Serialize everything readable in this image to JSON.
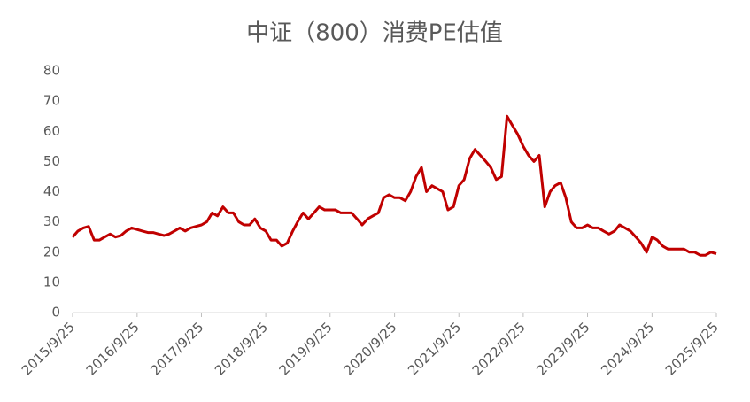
{
  "chart_data": {
    "type": "line",
    "title": "中证（800）消费PE估值",
    "x": [
      "2015/9/25",
      "2015/10/25",
      "2015/11/25",
      "2015/12/25",
      "2016/1/25",
      "2016/2/25",
      "2016/3/25",
      "2016/4/25",
      "2016/5/25",
      "2016/6/25",
      "2016/7/25",
      "2016/8/25",
      "2016/9/25",
      "2016/10/25",
      "2016/11/25",
      "2016/12/25",
      "2017/1/25",
      "2017/2/25",
      "2017/3/25",
      "2017/4/25",
      "2017/5/25",
      "2017/6/25",
      "2017/7/25",
      "2017/8/25",
      "2017/9/25",
      "2017/10/25",
      "2017/11/25",
      "2017/12/25",
      "2018/1/25",
      "2018/2/25",
      "2018/3/25",
      "2018/4/25",
      "2018/5/25",
      "2018/6/25",
      "2018/7/25",
      "2018/8/25",
      "2018/9/25",
      "2018/10/25",
      "2018/11/25",
      "2018/12/25",
      "2019/1/25",
      "2019/2/25",
      "2019/3/25",
      "2019/4/25",
      "2019/5/25",
      "2019/6/25",
      "2019/7/25",
      "2019/8/25",
      "2019/9/25",
      "2019/10/25",
      "2019/11/25",
      "2019/12/25",
      "2020/1/25",
      "2020/2/25",
      "2020/3/25",
      "2020/4/25",
      "2020/5/25",
      "2020/6/25",
      "2020/7/25",
      "2020/8/25",
      "2020/9/25",
      "2020/10/25",
      "2020/11/25",
      "2020/12/25",
      "2021/1/25",
      "2021/2/25",
      "2021/3/25",
      "2021/4/25",
      "2021/5/25",
      "2021/6/25",
      "2021/7/25",
      "2021/8/25",
      "2021/9/25",
      "2021/10/25",
      "2021/11/25",
      "2021/12/25",
      "2022/1/25",
      "2022/2/25",
      "2022/3/25",
      "2022/4/25",
      "2022/5/25",
      "2022/6/25",
      "2022/7/25",
      "2022/8/25",
      "2022/9/25",
      "2022/10/25",
      "2022/11/25",
      "2022/12/25",
      "2023/1/25",
      "2023/2/25",
      "2023/3/25",
      "2023/4/25",
      "2023/5/25",
      "2023/6/25",
      "2023/7/25",
      "2023/8/25",
      "2023/9/25",
      "2023/10/25",
      "2023/11/25",
      "2023/12/25",
      "2024/1/25",
      "2024/2/25",
      "2024/3/25",
      "2024/4/25",
      "2024/5/25",
      "2024/6/25",
      "2024/7/25",
      "2024/8/25",
      "2024/9/25",
      "2024/10/25",
      "2024/11/25",
      "2024/12/25",
      "2025/1/25",
      "2025/2/25",
      "2025/3/25",
      "2025/4/25",
      "2025/5/25",
      "2025/6/25",
      "2025/7/25",
      "2025/8/25",
      "2025/9/25"
    ],
    "series": [
      {
        "color": "#c00000",
        "values": [
          25,
          27,
          28,
          28.5,
          24,
          24,
          25,
          26,
          25,
          25.5,
          27,
          28,
          27.5,
          27,
          26.5,
          26.5,
          26,
          25.5,
          26,
          27,
          28,
          27,
          28,
          28.5,
          29,
          30,
          33,
          32,
          35,
          33,
          33,
          30,
          29,
          29,
          31,
          28,
          27,
          24,
          24,
          22,
          23,
          27,
          30,
          33,
          31,
          33,
          35,
          34,
          34,
          34,
          33,
          33,
          33,
          31,
          29,
          31,
          32,
          33,
          38,
          39,
          38,
          38,
          37,
          40,
          45,
          48,
          40,
          42,
          41,
          40,
          34,
          35,
          42,
          44,
          51,
          54,
          52,
          50,
          48,
          44,
          45,
          65,
          62,
          59,
          55,
          52,
          50,
          52,
          35,
          40,
          42,
          43,
          38,
          30,
          28,
          28,
          29,
          28,
          28,
          27,
          26,
          27,
          29,
          28,
          27,
          25,
          23,
          20,
          25,
          24,
          22,
          21,
          21,
          21,
          21,
          20,
          20,
          19,
          19,
          20,
          19.5
        ]
      }
    ],
    "xlim": [
      "2015/9/25",
      "2025/9/25"
    ],
    "xticks": [
      "2015/9/25",
      "2016/9/25",
      "2017/9/25",
      "2018/9/25",
      "2019/9/25",
      "2020/9/25",
      "2021/9/25",
      "2022/9/25",
      "2023/9/25",
      "2024/9/25",
      "2025/9/25"
    ],
    "ylim": [
      0,
      80
    ],
    "yticks": [
      0,
      10,
      20,
      30,
      40,
      50,
      60,
      70,
      80
    ],
    "grid": false
  }
}
